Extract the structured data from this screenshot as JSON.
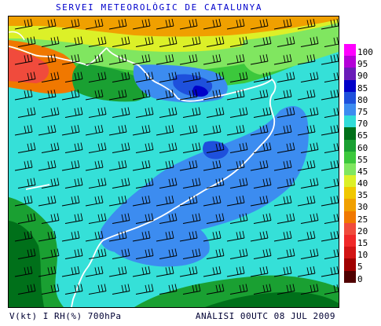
{
  "header": {
    "title": "SERVEI METEOROLÒGIC DE CATALUNYA"
  },
  "footer": {
    "variable": "V(kt) I RH(%) 700hPa",
    "analysis": "ANÀLISI 00UTC 08 JUL 2009"
  },
  "legend": [
    {
      "label": "100",
      "color": "#ff00ff"
    },
    {
      "label": "95",
      "color": "#b400d8"
    },
    {
      "label": "90",
      "color": "#6a1cb8"
    },
    {
      "label": "85",
      "color": "#0000c8"
    },
    {
      "label": "80",
      "color": "#1e50dc"
    },
    {
      "label": "75",
      "color": "#3c8cf0"
    },
    {
      "label": "70",
      "color": "#30dcd8"
    },
    {
      "label": "65",
      "color": "#00701a"
    },
    {
      "label": "60",
      "color": "#1aa032"
    },
    {
      "label": "55",
      "color": "#3cc83c"
    },
    {
      "label": "45",
      "color": "#80e660"
    },
    {
      "label": "40",
      "color": "#dcf028"
    },
    {
      "label": "35",
      "color": "#f0c800"
    },
    {
      "label": "30",
      "color": "#f0a000"
    },
    {
      "label": "25",
      "color": "#f07800"
    },
    {
      "label": "20",
      "color": "#f04b3c"
    },
    {
      "label": "15",
      "color": "#f02828"
    },
    {
      "label": "10",
      "color": "#d21414"
    },
    {
      "label": "5",
      "color": "#a00000"
    },
    {
      "label": "0",
      "color": "#500000"
    }
  ],
  "map": {
    "wind_barb_color": "#000000",
    "coastline_color": "#ffffff"
  }
}
